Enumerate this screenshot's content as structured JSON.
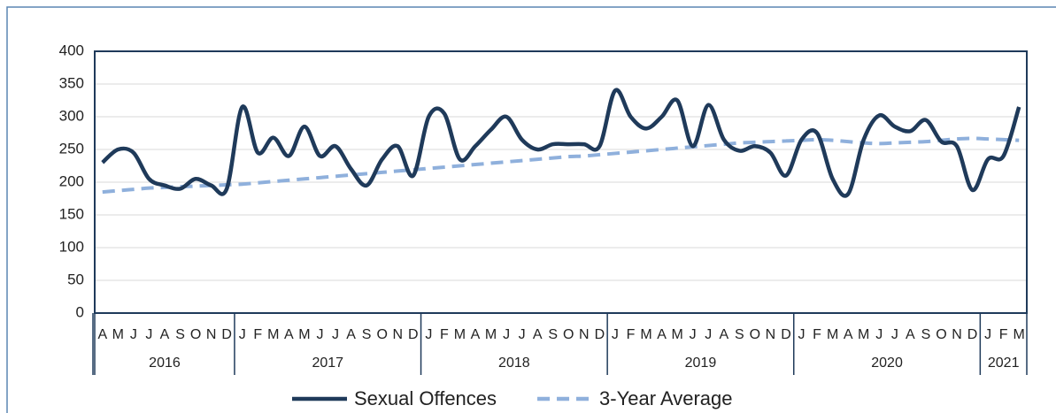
{
  "chart_data": {
    "type": "line",
    "categories": [
      "A",
      "M",
      "J",
      "J",
      "A",
      "S",
      "O",
      "N",
      "D",
      "J",
      "F",
      "M",
      "A",
      "M",
      "J",
      "J",
      "A",
      "S",
      "O",
      "N",
      "D",
      "J",
      "F",
      "M",
      "A",
      "M",
      "J",
      "J",
      "A",
      "S",
      "O",
      "N",
      "D",
      "J",
      "F",
      "M",
      "A",
      "M",
      "J",
      "J",
      "A",
      "S",
      "O",
      "N",
      "D",
      "J",
      "F",
      "M",
      "A",
      "M",
      "J",
      "J",
      "A",
      "S",
      "O",
      "N",
      "D",
      "J",
      "F",
      "M"
    ],
    "years": [
      "2016",
      "2017",
      "2018",
      "2019",
      "2020",
      "2021"
    ],
    "series": [
      {
        "name": "Sexual Offences",
        "color": "#1f3a5a",
        "dashed": false,
        "values": [
          230,
          250,
          245,
          205,
          195,
          190,
          205,
          195,
          190,
          315,
          245,
          268,
          240,
          285,
          240,
          255,
          220,
          195,
          235,
          255,
          210,
          300,
          305,
          235,
          255,
          280,
          300,
          265,
          250,
          258,
          258,
          258,
          255,
          340,
          300,
          282,
          300,
          325,
          255,
          318,
          265,
          248,
          255,
          245,
          210,
          265,
          275,
          205,
          182,
          265,
          302,
          285,
          278,
          295,
          262,
          255,
          188,
          235,
          240,
          315
        ]
      },
      {
        "name": "3-Year Average",
        "color": "#8fb0dc",
        "dashed": true,
        "values": [
          185,
          187,
          189,
          191,
          192,
          193,
          194,
          195,
          196,
          197,
          199,
          201,
          203,
          205,
          207,
          209,
          211,
          213,
          215,
          217,
          219,
          221,
          223,
          225,
          227,
          229,
          231,
          233,
          235,
          237,
          239,
          240,
          242,
          244,
          246,
          248,
          250,
          252,
          254,
          256,
          258,
          260,
          261,
          262,
          263,
          264,
          265,
          264,
          262,
          260,
          259,
          260,
          261,
          262,
          264,
          266,
          267,
          266,
          265,
          264
        ]
      }
    ],
    "ylim": [
      0,
      400
    ],
    "yticks": [
      0,
      50,
      100,
      150,
      200,
      250,
      300,
      350,
      400
    ],
    "grid": true,
    "legend": "bottom"
  }
}
